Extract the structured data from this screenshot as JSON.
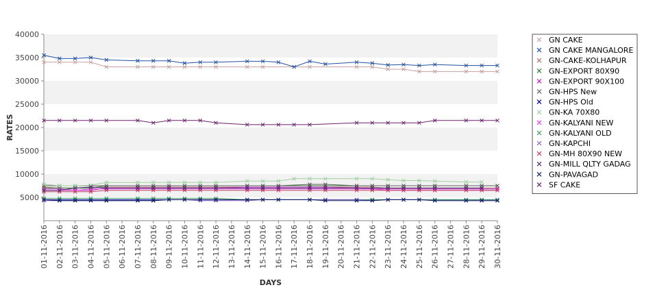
{
  "chart_data": {
    "type": "line",
    "title": "",
    "xlabel": "DAYS",
    "ylabel": "RATES",
    "ylim": [
      0,
      40000
    ],
    "yticks": [
      5000,
      10000,
      15000,
      20000,
      25000,
      30000,
      35000,
      40000
    ],
    "grid": "alternating horizontal bands",
    "legend": "right",
    "categories": [
      "01-11-2016",
      "02-11-2016",
      "03-11-2016",
      "04-11-2016",
      "05-11-2016",
      "06-11-2016",
      "07-11-2016",
      "08-11-2016",
      "09-11-2016",
      "10-11-2016",
      "11-11-2016",
      "12-11-2016",
      "13-11-2016",
      "14-11-2016",
      "15-11-2016",
      "16-11-2016",
      "17-11-2016",
      "18-11-2016",
      "19-11-2016",
      "20-11-2016",
      "21-11-2016",
      "22-11-2016",
      "23-11-2016",
      "24-11-2016",
      "25-11-2016",
      "26-11-2016",
      "27-11-2016",
      "28-11-2016",
      "29-11-2016",
      "30-11-2016"
    ],
    "series": [
      {
        "name": "GN CAKE",
        "color": "#c8a0a0",
        "values": [
          34000,
          34000,
          34000,
          34000,
          33000,
          null,
          33000,
          33000,
          33000,
          33000,
          33000,
          33000,
          null,
          33000,
          33000,
          null,
          null,
          33000,
          null,
          null,
          33000,
          33000,
          32500,
          32500,
          32000,
          32000,
          null,
          32000,
          32000,
          32000
        ]
      },
      {
        "name": "GN CAKE MANGALORE",
        "color": "#2050a0",
        "values": [
          35500,
          34800,
          34800,
          35000,
          34500,
          null,
          34300,
          34300,
          34300,
          33800,
          34000,
          34000,
          null,
          34200,
          34200,
          34000,
          33000,
          34200,
          33600,
          null,
          34000,
          33800,
          33400,
          33500,
          33300,
          33500,
          null,
          33300,
          33300,
          33300
        ]
      },
      {
        "name": "GN-CAKE-KOLHAPUR",
        "color": "#b07070",
        "values": [
          7200,
          7000,
          7000,
          7000,
          7200,
          null,
          7200,
          7200,
          7200,
          7200,
          7200,
          7200,
          null,
          7200,
          7200,
          7200,
          null,
          7200,
          7200,
          null,
          7200,
          7200,
          7000,
          7000,
          7000,
          7000,
          null,
          7000,
          7000,
          7000
        ]
      },
      {
        "name": "GN-EXPORT 80X90",
        "color": "#308030",
        "values": [
          7000,
          7000,
          7000,
          7000,
          7500,
          null,
          7500,
          7500,
          7500,
          7500,
          7500,
          7500,
          null,
          7500,
          7500,
          7500,
          null,
          7500,
          7500,
          null,
          7500,
          7500,
          7500,
          7500,
          7500,
          7500,
          null,
          7500,
          7500,
          7500
        ]
      },
      {
        "name": "GN-EXPORT 90X100",
        "color": "#c020c0",
        "values": [
          6500,
          6500,
          6500,
          6500,
          7000,
          null,
          7000,
          7000,
          7000,
          7000,
          7000,
          7000,
          null,
          7200,
          7200,
          7200,
          null,
          7200,
          7200,
          null,
          7000,
          6800,
          6800,
          6800,
          6800,
          6800,
          null,
          6800,
          6800,
          6800
        ]
      },
      {
        "name": "GN-HPS New",
        "color": "#606060",
        "values": [
          7500,
          7500,
          7500,
          7500,
          7500,
          null,
          7500,
          7500,
          7500,
          7500,
          7500,
          7500,
          null,
          7500,
          7500,
          7500,
          null,
          7800,
          7800,
          null,
          7500,
          7500,
          7500,
          7500,
          7500,
          7500,
          null,
          7500,
          7500,
          7500
        ]
      },
      {
        "name": "GN-HPS Old",
        "color": "#0000a0",
        "values": [
          4500,
          4500,
          4500,
          4500,
          4500,
          null,
          4500,
          4500,
          4500,
          4500,
          4500,
          4500,
          null,
          4500,
          4500,
          4500,
          null,
          4500,
          4500,
          null,
          4500,
          4500,
          4500,
          4500,
          4500,
          4500,
          null,
          4500,
          4500,
          4500
        ]
      },
      {
        "name": "GN-KA 70X80",
        "color": "#a0d0a0",
        "values": [
          7800,
          7500,
          7500,
          7600,
          8200,
          null,
          8200,
          8200,
          8200,
          8200,
          8200,
          8200,
          null,
          8500,
          8500,
          8500,
          9000,
          9000,
          9000,
          null,
          9000,
          9000,
          8800,
          8600,
          8600,
          8500,
          null,
          8300,
          8300,
          null
        ]
      },
      {
        "name": "GN-KALYANI NEW",
        "color": "#e040e0",
        "values": [
          6800,
          6800,
          6500,
          6800,
          6800,
          null,
          6800,
          6800,
          6800,
          6800,
          6800,
          6800,
          null,
          6800,
          6800,
          6800,
          null,
          6800,
          6800,
          null,
          6800,
          6800,
          6500,
          6500,
          6500,
          6500,
          null,
          6500,
          6500,
          6500
        ]
      },
      {
        "name": "GN-KALYANI OLD",
        "color": "#40a060",
        "values": [
          4800,
          4800,
          4800,
          4800,
          4800,
          null,
          4800,
          4800,
          4800,
          4800,
          4800,
          4800,
          null,
          4500,
          4500,
          4500,
          null,
          4500,
          4500,
          null,
          4500,
          4500,
          4500,
          4500,
          4500,
          4500,
          null,
          4500,
          4500,
          4500
        ]
      },
      {
        "name": "GN-KAPCHI",
        "color": "#8060c0",
        "values": [
          4300,
          4300,
          4300,
          4300,
          4300,
          null,
          4300,
          4300,
          4500,
          4500,
          4300,
          4300,
          null,
          4300,
          4500,
          4500,
          null,
          4500,
          4500,
          null,
          4500,
          4300,
          4500,
          4500,
          4500,
          4300,
          null,
          4300,
          4300,
          4300
        ]
      },
      {
        "name": "GN-MH 80X90 NEW",
        "color": "#c04060",
        "values": [
          6200,
          6200,
          6200,
          6200,
          6500,
          null,
          6500,
          6500,
          6500,
          6500,
          6500,
          6500,
          null,
          6500,
          6500,
          6500,
          null,
          6500,
          6500,
          null,
          6500,
          6500,
          6500,
          6500,
          6500,
          6500,
          null,
          6500,
          6500,
          6500
        ]
      },
      {
        "name": "GN-MILL QLTY GADAG",
        "color": "#503070",
        "values": [
          6500,
          6500,
          7000,
          7200,
          7000,
          null,
          7000,
          7000,
          7000,
          7000,
          7000,
          7000,
          null,
          7000,
          7000,
          7000,
          null,
          7000,
          7000,
          null,
          7000,
          7000,
          7000,
          7000,
          7000,
          7000,
          null,
          7000,
          7000,
          null
        ]
      },
      {
        "name": "GN-PAVAGAD",
        "color": "#102060",
        "values": [
          4500,
          4300,
          4300,
          4300,
          4300,
          null,
          4300,
          4300,
          4500,
          4500,
          4500,
          4500,
          null,
          4500,
          4500,
          4500,
          null,
          4500,
          4300,
          null,
          4300,
          4300,
          4500,
          4500,
          4500,
          4300,
          null,
          4300,
          4300,
          4300
        ]
      },
      {
        "name": "SF CAKE",
        "color": "#6a1f6a",
        "values": [
          21500,
          21500,
          21500,
          21500,
          21500,
          null,
          21500,
          21000,
          21500,
          21500,
          21500,
          21000,
          null,
          20600,
          20600,
          20600,
          20600,
          20600,
          null,
          null,
          21000,
          21000,
          21000,
          21000,
          21000,
          21500,
          null,
          21500,
          21500,
          21500
        ]
      }
    ]
  }
}
